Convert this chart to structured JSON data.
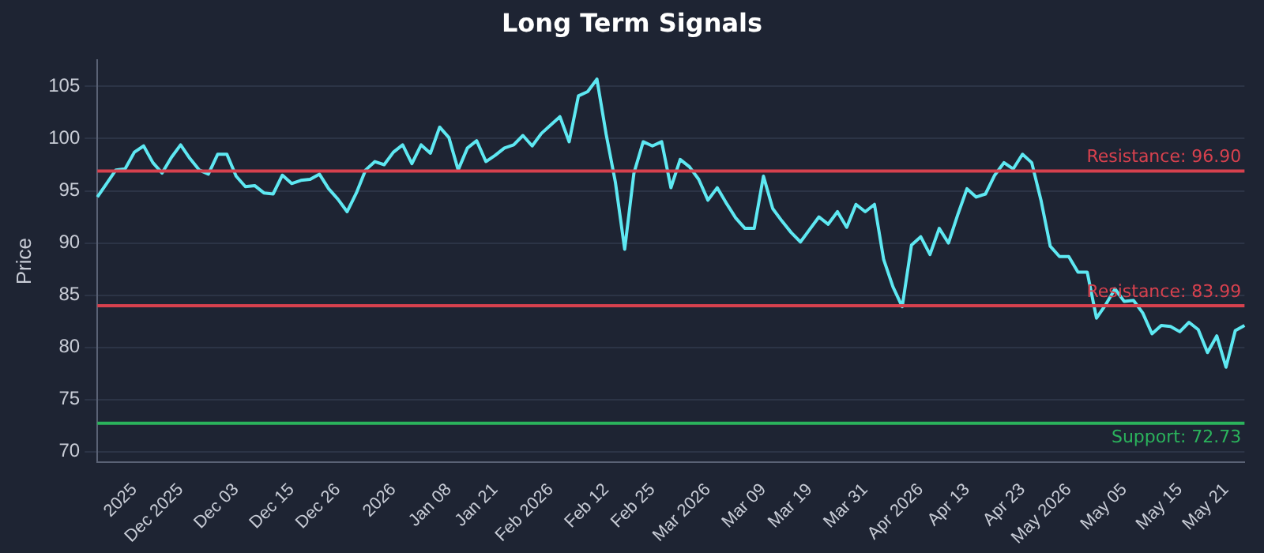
{
  "chart_data": {
    "type": "line",
    "title": "Long Term Signals",
    "ylabel": "Price",
    "categories": [
      null,
      null,
      null,
      null,
      "2025",
      null,
      null,
      null,
      null,
      "Dec 2025",
      null,
      null,
      null,
      null,
      null,
      "Dec 03",
      null,
      null,
      null,
      null,
      null,
      "Dec 15",
      null,
      null,
      null,
      null,
      "Dec 26",
      null,
      null,
      null,
      null,
      null,
      "2026",
      null,
      null,
      null,
      null,
      null,
      "Jan 08",
      null,
      null,
      null,
      null,
      "Jan 21",
      null,
      null,
      null,
      null,
      null,
      "Feb 2026",
      null,
      null,
      null,
      null,
      null,
      "Feb 12",
      null,
      null,
      null,
      null,
      "Feb 25",
      null,
      null,
      null,
      null,
      null,
      "Mar 2026",
      null,
      null,
      null,
      null,
      null,
      "Mar 09",
      null,
      null,
      null,
      null,
      "Mar 19",
      null,
      null,
      null,
      null,
      null,
      "Mar 31",
      null,
      null,
      null,
      null,
      null,
      "Apr 2026",
      null,
      null,
      null,
      null,
      "Apr 13",
      null,
      null,
      null,
      null,
      null,
      "Apr 23",
      null,
      null,
      null,
      null,
      "May 2026",
      null,
      null,
      null,
      null,
      null,
      "May 05",
      null,
      null,
      null,
      null,
      null,
      "May 15",
      null,
      null,
      null,
      null,
      "May 21",
      null,
      null
    ],
    "series": [
      {
        "color": "#5ee8f2",
        "values": [
          94.4,
          95.7,
          97.0,
          97.1,
          98.7,
          99.3,
          97.7,
          96.7,
          98.2,
          99.4,
          98.1,
          97.0,
          96.6,
          98.5,
          98.5,
          96.4,
          95.4,
          95.5,
          94.8,
          94.7,
          96.5,
          95.7,
          96.0,
          96.1,
          96.6,
          95.2,
          94.2,
          93.0,
          94.8,
          97.0,
          97.8,
          97.5,
          98.7,
          99.4,
          97.6,
          99.4,
          98.6,
          101.1,
          100.1,
          97.0,
          99.1,
          99.8,
          97.8,
          98.4,
          99.1,
          99.4,
          100.3,
          99.3,
          100.5,
          101.3,
          102.1,
          99.7,
          104.1,
          104.5,
          105.7,
          100.4,
          95.8,
          89.4,
          96.7,
          99.7,
          99.3,
          99.7,
          95.3,
          98.0,
          97.3,
          96.1,
          94.1,
          95.3,
          93.8,
          92.4,
          91.4,
          91.4,
          96.4,
          93.3,
          92.1,
          91.0,
          90.1,
          91.3,
          92.5,
          91.8,
          93.0,
          91.5,
          93.7,
          93.0,
          93.7,
          88.4,
          85.8,
          83.9,
          89.8,
          90.6,
          88.9,
          91.4,
          90.0,
          92.7,
          95.2,
          94.4,
          94.7,
          96.5,
          97.7,
          97.1,
          98.5,
          97.7,
          94.1,
          89.7,
          88.7,
          88.7,
          87.2,
          87.2,
          82.8,
          84.1,
          85.6,
          84.4,
          84.5,
          83.3,
          81.3,
          82.1,
          82.0,
          81.5,
          82.4,
          81.7,
          79.5,
          81.1,
          78.1,
          81.6,
          82.1
        ]
      }
    ],
    "ylim": [
      69,
      107.5
    ],
    "yticks": [
      70,
      75,
      80,
      85,
      90,
      95,
      100,
      105
    ],
    "grid": "y",
    "legend": false,
    "marker": "none",
    "line_style": "solid",
    "ref_lines": [
      {
        "axis": "y",
        "value": 96.9,
        "label": "Resistance: 96.90",
        "color": "#d7414e"
      },
      {
        "axis": "y",
        "value": 83.99,
        "label": "Resistance: 83.99",
        "color": "#d7414e"
      },
      {
        "axis": "y",
        "value": 72.73,
        "label": "Support: 72.73",
        "color": "#2bb35c"
      }
    ]
  }
}
